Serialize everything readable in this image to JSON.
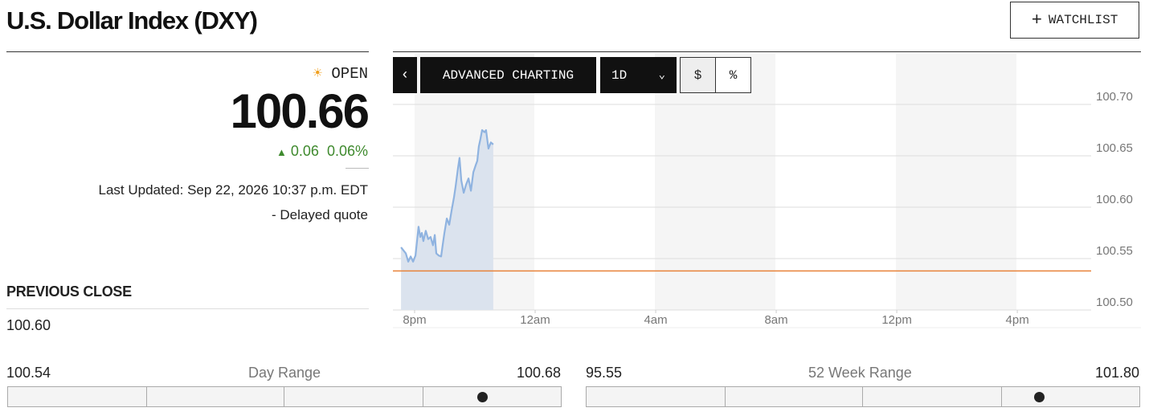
{
  "header": {
    "title": "U.S. Dollar Index (DXY)",
    "watchlist": "WATCHLIST"
  },
  "quote": {
    "status": "OPEN",
    "price": "100.66",
    "change": "0.06",
    "change_pct": "0.06%",
    "last_updated": "Last Updated: Sep 22, 2026 10:37 p.m. EDT",
    "delayed": "-  Delayed quote"
  },
  "previous_close": {
    "label": "PREVIOUS CLOSE",
    "value": "100.60"
  },
  "toolbar": {
    "advanced": "ADVANCED CHARTING",
    "period": "1D",
    "dollar": "$",
    "percent": "%"
  },
  "chart": {
    "type": "line",
    "color": "#8fb3e0",
    "area_color": "#dbe3ee",
    "x": [
      -0.45,
      -0.29,
      -0.21,
      -0.13,
      -0.05,
      0.03,
      0.08,
      0.13,
      0.19,
      0.24,
      0.29,
      0.37,
      0.45,
      0.53,
      0.61,
      0.67,
      0.72,
      0.8,
      0.88,
      0.93,
      0.99,
      1.07,
      1.15,
      1.23,
      1.31,
      1.36,
      1.44,
      1.49,
      1.55,
      1.63,
      1.71,
      1.79,
      1.87,
      1.95,
      2.03,
      2.08,
      2.13,
      2.19,
      2.24,
      2.32,
      2.37,
      2.45,
      2.53,
      2.61
    ],
    "values": [
      100.561,
      100.555,
      100.547,
      100.552,
      100.547,
      100.553,
      100.567,
      100.581,
      100.571,
      100.575,
      100.567,
      100.577,
      100.569,
      100.571,
      100.563,
      100.573,
      100.555,
      100.553,
      100.552,
      100.563,
      100.575,
      100.589,
      100.583,
      100.597,
      100.61,
      100.62,
      100.638,
      100.648,
      100.626,
      100.614,
      100.622,
      100.628,
      100.616,
      100.634,
      100.641,
      100.645,
      100.659,
      100.667,
      100.675,
      100.673,
      100.675,
      100.657,
      100.663,
      100.661
    ],
    "reference_line": 100.538,
    "reference_color": "#e8833a",
    "xlim": [
      -0.72,
      22.45
    ],
    "xticks": [
      {
        "value": 0,
        "label": "8pm"
      },
      {
        "value": 4,
        "label": "12am"
      },
      {
        "value": 8,
        "label": "4am"
      },
      {
        "value": 12,
        "label": "8am"
      },
      {
        "value": 16,
        "label": "12pm"
      },
      {
        "value": 20,
        "label": "4pm"
      }
    ],
    "ylim": [
      100.5,
      100.75
    ],
    "yticks": [
      {
        "value": 100.5,
        "label": "100.50"
      },
      100.55,
      {
        "value": 100.6,
        "label": "100.60"
      },
      100.65,
      {
        "value": 100.7,
        "label": "100.70"
      }
    ],
    "grid": true
  },
  "day_range": {
    "low": "100.54",
    "label": "Day Range",
    "high": "100.68"
  },
  "week52_range": {
    "low": "95.55",
    "label": "52 Week Range",
    "high": "101.80"
  }
}
